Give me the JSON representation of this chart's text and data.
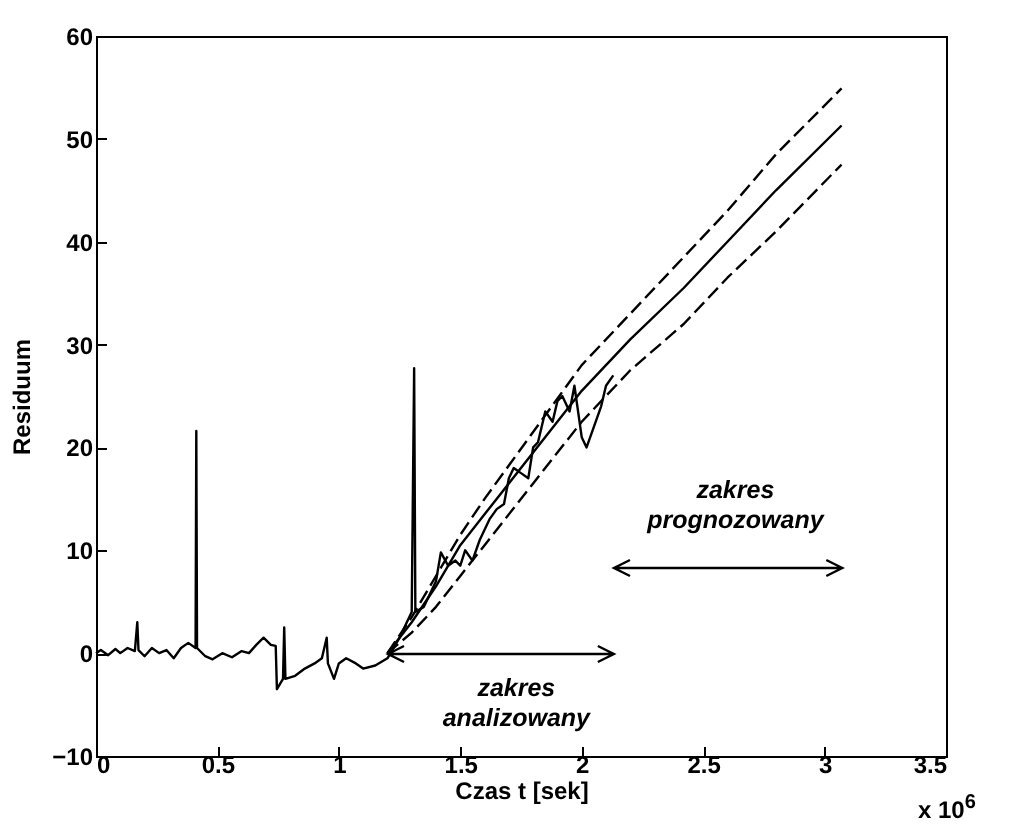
{
  "chart_data": {
    "type": "line",
    "xlabel": "Czas t [sek]",
    "ylabel": "Residuum",
    "xlim": [
      0,
      3.5
    ],
    "xticks": [
      0,
      0.5,
      1,
      1.5,
      2,
      2.5,
      3,
      3.5
    ],
    "ylim": [
      -10,
      60
    ],
    "yticks": [
      -10,
      0,
      10,
      20,
      30,
      40,
      50,
      60
    ],
    "grid": false,
    "series": [
      {
        "color": "#000000",
        "line_style": "solid",
        "x": [
          0,
          0.02,
          0.05,
          0.08,
          0.1,
          0.13,
          0.16,
          0.17,
          0.175,
          0.2,
          0.23,
          0.26,
          0.29,
          0.32,
          0.35,
          0.38,
          0.41,
          0.413,
          0.416,
          0.45,
          0.48,
          0.52,
          0.56,
          0.6,
          0.63,
          0.66,
          0.69,
          0.72,
          0.74,
          0.745,
          0.77,
          0.775,
          0.78,
          0.82,
          0.86,
          0.9,
          0.93,
          0.95,
          0.955,
          0.98,
          1.0,
          1.03,
          1.07,
          1.1,
          1.15,
          1.2,
          1.25,
          1.28,
          1.3,
          1.31,
          1.315,
          1.35,
          1.4,
          1.42,
          1.45,
          1.48,
          1.5,
          1.52,
          1.55,
          1.58,
          1.6,
          1.62,
          1.65,
          1.68,
          1.7,
          1.72,
          1.75,
          1.78,
          1.8,
          1.82,
          1.85,
          1.88,
          1.9,
          1.92,
          1.95,
          1.97,
          2.0,
          2.02,
          2.05,
          2.08,
          2.1,
          2.13
        ],
        "values": [
          0,
          0.3,
          -0.2,
          0.4,
          0,
          0.5,
          0.2,
          3,
          0.3,
          -0.3,
          0.5,
          0,
          0.3,
          -0.5,
          0.5,
          1,
          0.5,
          21.6,
          0.5,
          -0.3,
          -0.6,
          0,
          -0.4,
          0.2,
          0,
          0.8,
          1.5,
          0.8,
          0.7,
          -3.5,
          -2.5,
          2.5,
          -2.5,
          -2.2,
          -1.5,
          -1,
          -0.5,
          1.5,
          -1,
          -2.5,
          -1,
          -0.5,
          -1,
          -1.5,
          -1.2,
          -0.5,
          1.5,
          3,
          4,
          27.7,
          4,
          4.5,
          7,
          9.8,
          8.5,
          9,
          8.5,
          10,
          9,
          11,
          12,
          13,
          14,
          14.5,
          17,
          18,
          17.5,
          17,
          20,
          20.5,
          23.5,
          22.5,
          24.5,
          25,
          23.5,
          26,
          21,
          20,
          22,
          24,
          26,
          27
        ]
      },
      {
        "color": "#000000",
        "line_style": "solid",
        "x": [
          1.2,
          1.3,
          1.4,
          1.5,
          1.6,
          1.8,
          2.0,
          2.2,
          2.42,
          2.6,
          2.8,
          3.07
        ],
        "values": [
          0,
          3,
          6.5,
          10.5,
          13.5,
          19.5,
          25.5,
          30.5,
          35.5,
          40,
          45,
          51.3
        ]
      },
      {
        "color": "#000000",
        "line_style": "dashed",
        "x": [
          1.2,
          1.3,
          1.4,
          1.5,
          1.6,
          1.8,
          2.0,
          2.2,
          2.42,
          2.6,
          2.8,
          3.07
        ],
        "values": [
          0,
          3.5,
          7.5,
          11.5,
          15,
          21.5,
          28,
          33,
          38.5,
          43,
          48.5,
          54.9
        ]
      },
      {
        "color": "#000000",
        "line_style": "dashed",
        "x": [
          1.2,
          1.3,
          1.4,
          1.5,
          1.6,
          1.8,
          2.0,
          2.2,
          2.42,
          2.6,
          2.8,
          3.07
        ],
        "values": [
          0,
          2,
          4.5,
          7.5,
          10.5,
          16.5,
          22.5,
          27.5,
          32,
          36.5,
          41,
          47.5
        ]
      }
    ],
    "annotations": [
      "zakres analizowany",
      "zakres prognozowany",
      "x 10$^{6}$"
    ]
  }
}
